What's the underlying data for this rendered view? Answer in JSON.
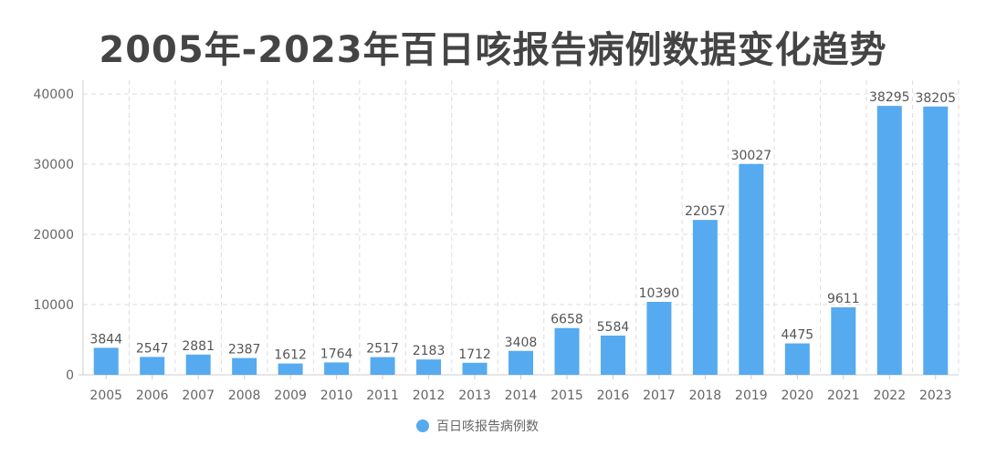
{
  "chart_data": {
    "type": "bar",
    "title": "2005年-2023年百日咳报告病例数据变化趋势",
    "categories": [
      "2005",
      "2006",
      "2007",
      "2008",
      "2009",
      "2010",
      "2011",
      "2012",
      "2013",
      "2014",
      "2015",
      "2016",
      "2017",
      "2018",
      "2019",
      "2020",
      "2021",
      "2022",
      "2023"
    ],
    "series": [
      {
        "name": "百日咳报告病例数",
        "values": [
          3844,
          2547,
          2881,
          2387,
          1612,
          1764,
          2517,
          2183,
          1712,
          3408,
          6658,
          5584,
          10390,
          22057,
          30027,
          4475,
          9611,
          38295,
          38205
        ],
        "color": "#56aaf0"
      }
    ],
    "ylim": [
      0,
      40000
    ],
    "yticks": [
      0,
      10000,
      20000,
      30000,
      40000
    ],
    "grid": true,
    "legend": "bottom-center",
    "data_labels": true
  }
}
